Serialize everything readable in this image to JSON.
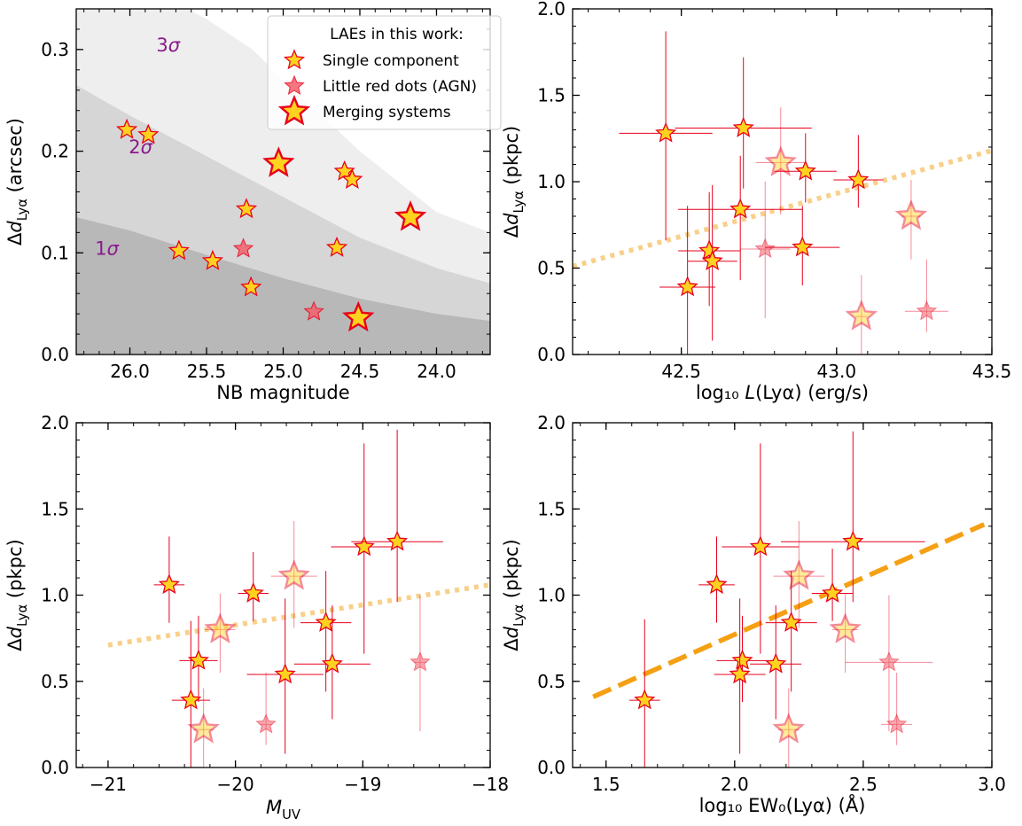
{
  "chart_data": [
    {
      "id": "panel-nb",
      "type": "scatter",
      "xlabel": "NB magnitude",
      "ylabel": "Δd_Lyα (arcsec)",
      "xlim": [
        26.35,
        23.65
      ],
      "ylim": [
        0.0,
        0.34
      ],
      "xticks": [
        26.0,
        25.5,
        25.0,
        24.5,
        24.0
      ],
      "xtick_labels": [
        "26.0",
        "25.5",
        "25.0",
        "24.5",
        "24.0"
      ],
      "yticks": [
        0.0,
        0.1,
        0.2,
        0.3
      ],
      "ytick_labels": [
        "0.0",
        "0.1",
        "0.2",
        "0.3"
      ],
      "bands": [
        {
          "label": "1σ",
          "points": [
            [
              26.35,
              0.135
            ],
            [
              26.0,
              0.122
            ],
            [
              25.5,
              0.098
            ],
            [
              25.0,
              0.075
            ],
            [
              24.5,
              0.055
            ],
            [
              24.0,
              0.04
            ],
            [
              23.65,
              0.033
            ]
          ]
        },
        {
          "label": "2σ",
          "points": [
            [
              26.35,
              0.265
            ],
            [
              26.0,
              0.235
            ],
            [
              25.5,
              0.195
            ],
            [
              25.0,
              0.155
            ],
            [
              24.5,
              0.115
            ],
            [
              24.0,
              0.085
            ],
            [
              23.65,
              0.07
            ]
          ]
        },
        {
          "label": "3σ",
          "points": [
            [
              26.35,
              0.4
            ],
            [
              26.0,
              0.37
            ],
            [
              25.5,
              0.33
            ],
            [
              25.2,
              0.3
            ],
            [
              25.0,
              0.27
            ],
            [
              24.5,
              0.2
            ],
            [
              24.0,
              0.14
            ],
            [
              23.65,
              0.12
            ]
          ]
        }
      ],
      "band_labels": [
        {
          "text": "3σ",
          "x": 25.75,
          "y": 0.298
        },
        {
          "text": "2σ",
          "x": 25.93,
          "y": 0.198
        },
        {
          "text": "1σ",
          "x": 26.15,
          "y": 0.098
        }
      ],
      "legend": {
        "position": "top-right",
        "title": "LAEs in this work:",
        "entries": [
          {
            "label": "Single component",
            "marker": "single"
          },
          {
            "label": "Little red dots (AGN)",
            "marker": "lrd"
          },
          {
            "label": "Merging systems",
            "marker": "merger"
          }
        ]
      },
      "series": [
        {
          "kind": "single",
          "points": [
            [
              26.02,
              0.221
            ],
            [
              25.88,
              0.216
            ],
            [
              25.68,
              0.102
            ],
            [
              25.46,
              0.092
            ],
            [
              25.24,
              0.143
            ],
            [
              25.21,
              0.066
            ],
            [
              24.6,
              0.18
            ],
            [
              24.55,
              0.172
            ],
            [
              24.65,
              0.105
            ]
          ]
        },
        {
          "kind": "lrd",
          "points": [
            [
              25.26,
              0.104
            ],
            [
              24.8,
              0.042
            ]
          ]
        },
        {
          "kind": "merger",
          "points": [
            [
              25.03,
              0.188
            ],
            [
              24.51,
              0.036
            ],
            [
              24.17,
              0.135
            ]
          ]
        }
      ]
    },
    {
      "id": "panel-lum",
      "type": "scatter",
      "xlabel": "log₁₀ L(Lyα) (erg/s)",
      "ylabel": "Δd_Lyα (pkpc)",
      "xlim": [
        42.15,
        43.5
      ],
      "ylim": [
        0.0,
        2.0
      ],
      "xticks": [
        42.5,
        43.0,
        43.5
      ],
      "xtick_labels": [
        "42.5",
        "43.0",
        "43.5"
      ],
      "yticks": [
        0.0,
        0.5,
        1.0,
        1.5,
        2.0
      ],
      "ytick_labels": [
        "0.0",
        "0.5",
        "1.0",
        "1.5",
        "2.0"
      ],
      "fit_line": {
        "style": "dotted",
        "points": [
          [
            42.15,
            0.51
          ],
          [
            43.5,
            1.18
          ]
        ]
      },
      "series": [
        {
          "kind": "single",
          "points": [
            {
              "x": 42.45,
              "y": 1.28,
              "xerr": [
                0.15,
                0.15
              ],
              "yerr": [
                0.62,
                0.59
              ]
            },
            {
              "x": 42.7,
              "y": 1.31,
              "xerr": [
                0.22,
                0.22
              ],
              "yerr": [
                0.35,
                0.41
              ]
            },
            {
              "x": 42.69,
              "y": 0.84,
              "xerr": [
                0.2,
                0.2
              ],
              "yerr": [
                0.41,
                0.31
              ]
            },
            {
              "x": 42.9,
              "y": 1.06,
              "xerr": [
                0.1,
                0.1
              ],
              "yerr": [
                0.18,
                0.22
              ]
            },
            {
              "x": 43.07,
              "y": 1.01,
              "xerr": [
                0.08,
                0.08
              ],
              "yerr": [
                0.16,
                0.26
              ]
            },
            {
              "x": 42.59,
              "y": 0.6,
              "xerr": [
                0.1,
                0.1
              ],
              "yerr": [
                0.32,
                0.34
              ]
            },
            {
              "x": 42.6,
              "y": 0.54,
              "xerr": [
                0.08,
                0.08
              ],
              "yerr": [
                0.46,
                0.44
              ]
            },
            {
              "x": 42.89,
              "y": 0.62,
              "xerr": [
                0.12,
                0.12
              ],
              "yerr": [
                0.22,
                0.24
              ]
            },
            {
              "x": 42.52,
              "y": 0.39,
              "xerr": [
                0.09,
                0.09
              ],
              "yerr": [
                0.39,
                0.47
              ]
            }
          ]
        },
        {
          "kind": "lrd",
          "points": [
            {
              "x": 42.77,
              "y": 0.61,
              "xerr": [
                0.08,
                0.08
              ],
              "yerr": [
                0.4,
                0.39
              ]
            },
            {
              "x": 43.29,
              "y": 0.25,
              "xerr": [
                0.07,
                0.07
              ],
              "yerr": [
                0.12,
                0.3
              ]
            }
          ]
        },
        {
          "kind": "merger",
          "points": [
            {
              "x": 42.82,
              "y": 1.11,
              "xerr": [
                0.08,
                0.08
              ],
              "yerr": [
                0.3,
                0.32
              ]
            },
            {
              "x": 43.24,
              "y": 0.8,
              "xerr": [
                0.03,
                0.03
              ],
              "yerr": [
                0.25,
                0.21
              ]
            },
            {
              "x": 43.08,
              "y": 0.22,
              "xerr": [
                0.02,
                0.02
              ],
              "yerr": [
                0.22,
                0.24
              ]
            }
          ]
        }
      ]
    },
    {
      "id": "panel-muv",
      "type": "scatter",
      "xlabel": "M_UV",
      "ylabel": "Δd_Lyα (pkpc)",
      "xlim": [
        -21.25,
        -18.0
      ],
      "ylim": [
        0.0,
        2.0
      ],
      "xticks": [
        -21,
        -20,
        -19,
        -18
      ],
      "xtick_labels": [
        "−21",
        "−20",
        "−19",
        "−18"
      ],
      "yticks": [
        0.0,
        0.5,
        1.0,
        1.5,
        2.0
      ],
      "ytick_labels": [
        "0.0",
        "0.5",
        "1.0",
        "1.5",
        "2.0"
      ],
      "fit_line": {
        "style": "dotted",
        "points": [
          [
            -21.0,
            0.71
          ],
          [
            -18.0,
            1.06
          ]
        ]
      },
      "series": [
        {
          "kind": "single",
          "points": [
            {
              "x": -20.52,
              "y": 1.06,
              "xerr": [
                0.12,
                0.12
              ],
              "yerr": [
                0.22,
                0.28
              ]
            },
            {
              "x": -19.86,
              "y": 1.01,
              "xerr": [
                0.12,
                0.12
              ],
              "yerr": [
                0.16,
                0.24
              ]
            },
            {
              "x": -18.99,
              "y": 1.28,
              "xerr": [
                0.26,
                0.26
              ],
              "yerr": [
                0.62,
                0.6
              ]
            },
            {
              "x": -18.73,
              "y": 1.31,
              "xerr": [
                0.36,
                0.36
              ],
              "yerr": [
                0.35,
                0.65
              ]
            },
            {
              "x": -19.29,
              "y": 0.84,
              "xerr": [
                0.2,
                0.2
              ],
              "yerr": [
                0.4,
                0.3
              ]
            },
            {
              "x": -20.29,
              "y": 0.62,
              "xerr": [
                0.15,
                0.15
              ],
              "yerr": [
                0.24,
                0.26
              ]
            },
            {
              "x": -19.24,
              "y": 0.6,
              "xerr": [
                0.3,
                0.3
              ],
              "yerr": [
                0.32,
                0.34
              ]
            },
            {
              "x": -19.61,
              "y": 0.54,
              "xerr": [
                0.3,
                0.3
              ],
              "yerr": [
                0.46,
                0.44
              ]
            },
            {
              "x": -20.35,
              "y": 0.39,
              "xerr": [
                0.15,
                0.15
              ],
              "yerr": [
                0.39,
                0.46
              ]
            }
          ]
        },
        {
          "kind": "lrd",
          "points": [
            {
              "x": -18.55,
              "y": 0.61,
              "xerr": [
                0.05,
                0.05
              ],
              "yerr": [
                0.4,
                0.39
              ]
            },
            {
              "x": -19.76,
              "y": 0.25,
              "xerr": [
                0.05,
                0.05
              ],
              "yerr": [
                0.12,
                0.3
              ]
            }
          ]
        },
        {
          "kind": "merger",
          "points": [
            {
              "x": -19.54,
              "y": 1.11,
              "xerr": [
                0.18,
                0.18
              ],
              "yerr": [
                0.3,
                0.32
              ]
            },
            {
              "x": -20.12,
              "y": 0.8,
              "xerr": [
                0.12,
                0.12
              ],
              "yerr": [
                0.25,
                0.21
              ]
            },
            {
              "x": -20.25,
              "y": 0.22,
              "xerr": [
                0.08,
                0.08
              ],
              "yerr": [
                0.22,
                0.24
              ]
            }
          ]
        }
      ]
    },
    {
      "id": "panel-ew",
      "type": "scatter",
      "xlabel": "log₁₀ EW₀(Lyα) (Å)",
      "ylabel": "Δd_Lyα (pkpc)",
      "xlim": [
        1.37,
        3.0
      ],
      "ylim": [
        0.0,
        2.0
      ],
      "xticks": [
        1.5,
        2.0,
        2.5,
        3.0
      ],
      "xtick_labels": [
        "1.5",
        "2.0",
        "2.5",
        "3.0"
      ],
      "yticks": [
        0.0,
        0.5,
        1.0,
        1.5,
        2.0
      ],
      "ytick_labels": [
        "0.0",
        "0.5",
        "1.0",
        "1.5",
        "2.0"
      ],
      "fit_line": {
        "style": "dashed",
        "points": [
          [
            1.45,
            0.41
          ],
          [
            2.97,
            1.41
          ]
        ]
      },
      "series": [
        {
          "kind": "single",
          "points": [
            {
              "x": 1.93,
              "y": 1.06,
              "xerr": [
                0.07,
                0.07
              ],
              "yerr": [
                0.22,
                0.28
              ]
            },
            {
              "x": 2.1,
              "y": 1.28,
              "xerr": [
                0.15,
                0.15
              ],
              "yerr": [
                0.62,
                0.6
              ]
            },
            {
              "x": 2.46,
              "y": 1.31,
              "xerr": [
                0.28,
                0.28
              ],
              "yerr": [
                0.35,
                0.64
              ]
            },
            {
              "x": 2.38,
              "y": 1.01,
              "xerr": [
                0.08,
                0.08
              ],
              "yerr": [
                0.16,
                0.26
              ]
            },
            {
              "x": 2.22,
              "y": 0.84,
              "xerr": [
                0.1,
                0.1
              ],
              "yerr": [
                0.4,
                0.3
              ]
            },
            {
              "x": 2.03,
              "y": 0.62,
              "xerr": [
                0.1,
                0.1
              ],
              "yerr": [
                0.24,
                0.26
              ]
            },
            {
              "x": 2.16,
              "y": 0.6,
              "xerr": [
                0.1,
                0.1
              ],
              "yerr": [
                0.32,
                0.34
              ]
            },
            {
              "x": 2.02,
              "y": 0.54,
              "xerr": [
                0.1,
                0.1
              ],
              "yerr": [
                0.46,
                0.44
              ]
            },
            {
              "x": 1.65,
              "y": 0.39,
              "xerr": [
                0.06,
                0.06
              ],
              "yerr": [
                0.39,
                0.47
              ]
            }
          ]
        },
        {
          "kind": "lrd",
          "points": [
            {
              "x": 2.6,
              "y": 0.61,
              "xerr": [
                0.17,
                0.17
              ],
              "yerr": [
                0.4,
                0.39
              ]
            },
            {
              "x": 2.63,
              "y": 0.25,
              "xerr": [
                0.06,
                0.06
              ],
              "yerr": [
                0.12,
                0.3
              ]
            }
          ]
        },
        {
          "kind": "merger",
          "points": [
            {
              "x": 2.25,
              "y": 1.11,
              "xerr": [
                0.1,
                0.1
              ],
              "yerr": [
                0.3,
                0.32
              ]
            },
            {
              "x": 2.43,
              "y": 0.8,
              "xerr": [
                0.05,
                0.05
              ],
              "yerr": [
                0.25,
                0.21
              ]
            },
            {
              "x": 2.21,
              "y": 0.22,
              "xerr": [
                0.04,
                0.04
              ],
              "yerr": [
                0.22,
                0.24
              ]
            }
          ]
        }
      ]
    }
  ],
  "colors": {
    "star_fill": "#FFD21F",
    "star_edge": "#E8001C",
    "lrd_fill": "#F2616B",
    "lrd_edge": "#E8001C",
    "errorbar": "#E8001C",
    "fit_dotted": "#F8D08A",
    "fit_dashed": "#F5A014",
    "band_1sigma": "#B8B8B8",
    "band_2sigma": "#D6D6D6",
    "band_3sigma": "#EEEEEE",
    "sigma_label": "#8B1A8B"
  }
}
